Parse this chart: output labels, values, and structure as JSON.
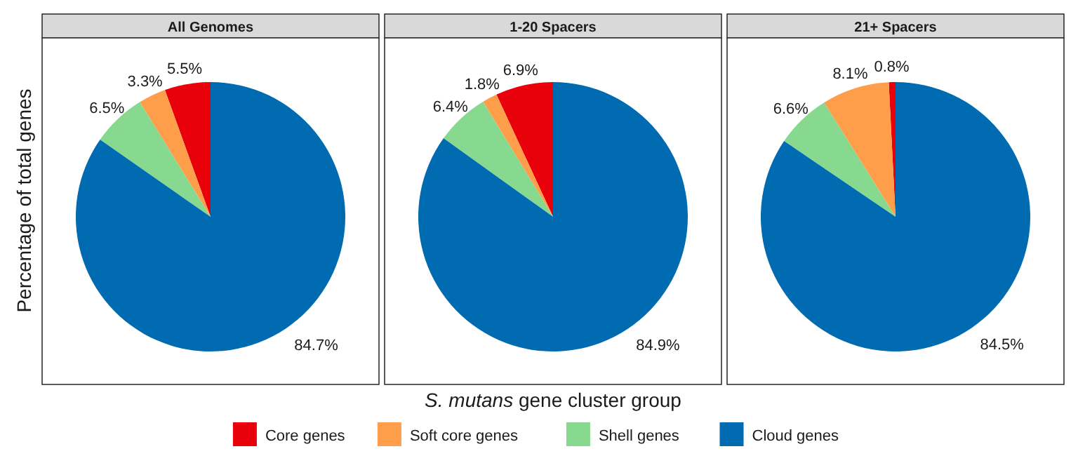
{
  "chart_data": [
    {
      "type": "pie",
      "title": "All Genomes",
      "ylabel": "Percentage of total genes",
      "legend": "bottom",
      "categories": [
        "Core genes",
        "Soft core genes",
        "Shell genes",
        "Cloud genes"
      ],
      "values": [
        5.5,
        3.3,
        6.5,
        84.7
      ],
      "value_labels": [
        "5.5%",
        "3.3%",
        "6.5%",
        "84.7%"
      ],
      "colors": [
        "#e8000b",
        "#ff9e4a",
        "#87d98f",
        "#006bb0"
      ]
    },
    {
      "type": "pie",
      "title": "1-20 Spacers",
      "xlabel": "S. mutans gene cluster group",
      "categories": [
        null,
        null,
        null,
        null
      ],
      "values": [
        6.9,
        1.8,
        6.4,
        84.9
      ],
      "value_labels": [
        "6.9%",
        "1.8%",
        "6.4%",
        "84.9%"
      ],
      "colors": [
        "#e8000b",
        "#ff9e4a",
        "#87d98f",
        "#006bb0"
      ]
    },
    {
      "type": "pie",
      "title": "21+ Spacers",
      "categories": [
        null,
        null,
        null,
        null
      ],
      "values": [
        0.8,
        8.1,
        6.6,
        84.5
      ],
      "value_labels": [
        "0.8%",
        "8.1%",
        "6.6%",
        "84.5%"
      ],
      "colors": [
        "#e8000b",
        "#ff9e4a",
        "#87d98f",
        "#006bb0"
      ]
    }
  ]
}
